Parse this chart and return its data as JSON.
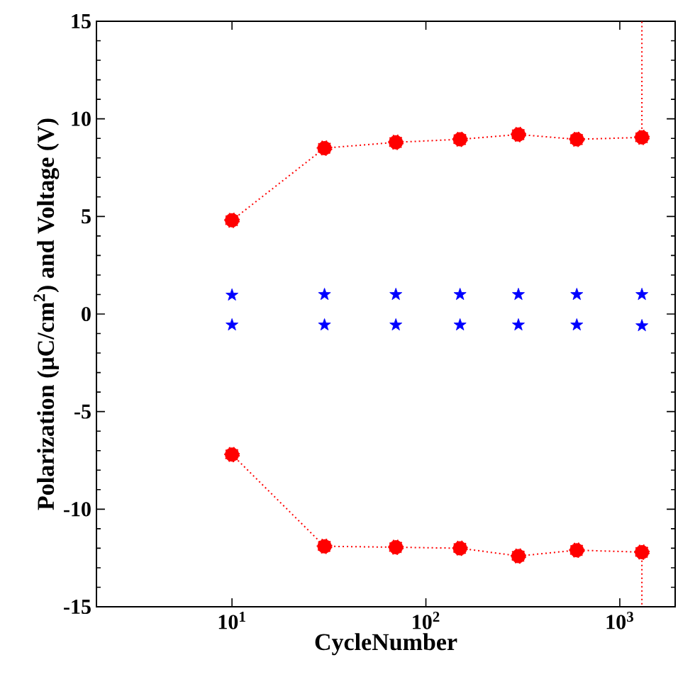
{
  "chart_data": {
    "type": "line",
    "xlabel": "CycleNumber",
    "ylabel": "Polarization (μC/cm$^{2}$) and Voltage (V)",
    "log": "x",
    "xlim": [
      2,
      1930
    ],
    "ylim": [
      -15,
      15
    ],
    "xticks": [
      {
        "value": 10,
        "label": "10$^{1}$"
      },
      {
        "value": 100,
        "label": "10$^{2}$"
      },
      {
        "value": 1000,
        "label": "10$^{3}$"
      }
    ],
    "yticks": [
      -15,
      -10,
      -5,
      0,
      5,
      10,
      15
    ],
    "series": [
      {
        "color": "#ff0000",
        "marker": "circle",
        "line_style": "dotted",
        "x": [
          10,
          30,
          70,
          150,
          300,
          600,
          1300
        ],
        "values": [
          4.8,
          8.5,
          8.8,
          8.95,
          9.2,
          8.95,
          9.05
        ]
      },
      {
        "color": "#ff0000",
        "marker": "circle",
        "line_style": "dotted",
        "x": [
          10,
          30,
          70,
          150,
          300,
          600,
          1300
        ],
        "values": [
          -7.2,
          -11.9,
          -11.95,
          -12.0,
          -12.4,
          -12.1,
          -12.2
        ]
      },
      {
        "color": "#ff0000",
        "marker": "none",
        "line_style": "dotted",
        "x": [
          1300,
          1300
        ],
        "values": [
          9.05,
          15
        ]
      },
      {
        "color": "#ff0000",
        "marker": "none",
        "line_style": "dotted",
        "x": [
          1300,
          1300
        ],
        "values": [
          -12.2,
          -15
        ]
      },
      {
        "type": "scatter",
        "color": "#0000ff",
        "marker": "star",
        "x": [
          10,
          30,
          70,
          150,
          300,
          600,
          1300
        ],
        "values": [
          0.97,
          1.0,
          1.0,
          1.0,
          1.0,
          1.0,
          1.0
        ]
      },
      {
        "type": "scatter",
        "color": "#0000ff",
        "marker": "star",
        "x": [
          10,
          30,
          70,
          150,
          300,
          600,
          1300
        ],
        "values": [
          -0.56,
          -0.56,
          -0.56,
          -0.56,
          -0.56,
          -0.56,
          -0.6
        ]
      }
    ]
  }
}
